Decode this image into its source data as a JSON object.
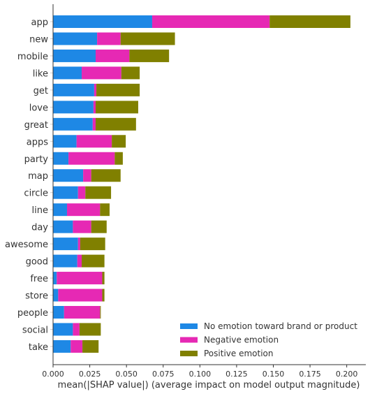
{
  "chart_data": {
    "type": "bar",
    "orientation": "horizontal",
    "stacked": true,
    "categories": [
      "app",
      "new",
      "mobile",
      "like",
      "get",
      "love",
      "great",
      "apps",
      "party",
      "map",
      "circle",
      "line",
      "day",
      "awesome",
      "good",
      "free",
      "store",
      "people",
      "social",
      "take"
    ],
    "series": [
      {
        "name": "No emotion toward brand or product",
        "color": "#1e88e5",
        "values": [
          0.0675,
          0.03,
          0.029,
          0.0195,
          0.028,
          0.0275,
          0.027,
          0.016,
          0.0105,
          0.0205,
          0.017,
          0.0095,
          0.0135,
          0.017,
          0.0165,
          0.0025,
          0.0035,
          0.0075,
          0.0135,
          0.012
        ]
      },
      {
        "name": "Negative emotion",
        "color": "#e629b4",
        "values": [
          0.08,
          0.016,
          0.023,
          0.027,
          0.0015,
          0.0015,
          0.002,
          0.024,
          0.0315,
          0.0055,
          0.005,
          0.0225,
          0.0125,
          0.0015,
          0.003,
          0.031,
          0.03,
          0.0245,
          0.0045,
          0.008
        ]
      },
      {
        "name": "Positive emotion",
        "color": "#808000",
        "values": [
          0.055,
          0.037,
          0.027,
          0.0125,
          0.0295,
          0.029,
          0.0275,
          0.0095,
          0.0055,
          0.02,
          0.0175,
          0.0065,
          0.0105,
          0.017,
          0.0155,
          0.0015,
          0.0015,
          0.0005,
          0.0145,
          0.011
        ]
      }
    ],
    "xlabel": "mean(|SHAP value|) (average impact on model output magnitude)",
    "xlim": [
      0.0,
      0.213
    ],
    "xticks": [
      "0.000",
      "0.025",
      "0.050",
      "0.075",
      "0.100",
      "0.125",
      "0.150",
      "0.175",
      "0.200"
    ],
    "grid": false,
    "legend_position": "lower-right"
  }
}
